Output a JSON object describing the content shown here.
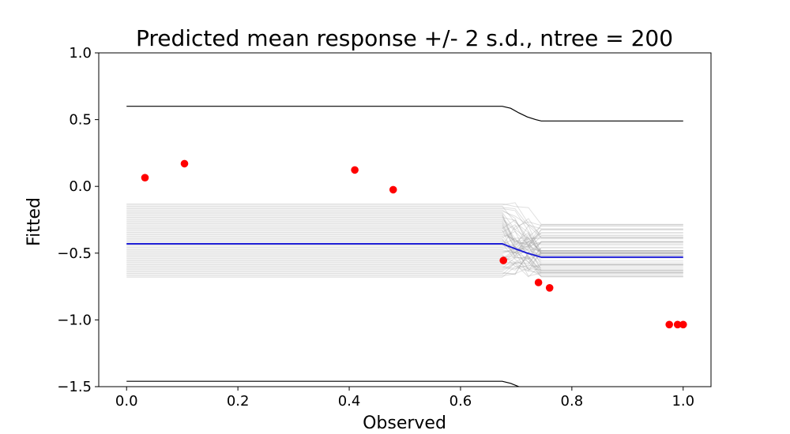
{
  "chart_data": {
    "type": "line",
    "title": "Predicted mean response +/- 2 s.d., ntree = 200",
    "xlabel": "Observed",
    "ylabel": "Fitted",
    "xlim": [
      -0.05,
      1.05
    ],
    "ylim": [
      -1.5,
      1.0
    ],
    "x_ticks": [
      0.0,
      0.2,
      0.4,
      0.6,
      0.8,
      1.0
    ],
    "x_tick_labels": [
      "0.0",
      "0.2",
      "0.4",
      "0.6",
      "0.8",
      "1.0"
    ],
    "y_ticks": [
      1.0,
      0.5,
      0.0,
      -0.5,
      -1.0,
      -1.5
    ],
    "y_tick_labels": [
      "1.0",
      "0.5",
      "0.0",
      "−0.5",
      "−1.0",
      "−1.5"
    ],
    "grid": false,
    "legend": "none",
    "colors": {
      "mean": "#1f1fd6",
      "bands": "#000000",
      "trees": "#999999",
      "points": "#ff0000"
    },
    "series": [
      {
        "role": "upper band",
        "x": [
          0.0,
          0.675,
          0.69,
          0.705,
          0.72,
          0.735,
          0.745,
          1.0
        ],
        "y": [
          0.6,
          0.6,
          0.585,
          0.55,
          0.52,
          0.5,
          0.49,
          0.49
        ]
      },
      {
        "role": "lower band",
        "x": [
          0.0,
          0.675,
          0.69,
          0.705,
          0.72
        ],
        "y": [
          -1.46,
          -1.46,
          -1.475,
          -1.5,
          -1.52
        ]
      },
      {
        "role": "mean",
        "x": [
          0.0,
          0.675,
          0.7,
          0.72,
          0.745,
          1.0
        ],
        "y": [
          -0.43,
          -0.43,
          -0.47,
          -0.5,
          -0.53,
          -0.53
        ]
      }
    ],
    "trees": {
      "count": 60,
      "x_break_start": 0.675,
      "x_break_end": 0.745,
      "left_range": [
        -0.68,
        -0.13
      ],
      "right_range": [
        -0.68,
        -0.28
      ]
    },
    "points": {
      "x": [
        0.033,
        0.104,
        0.41,
        0.479,
        0.677,
        0.74,
        0.76,
        0.975,
        0.99,
        1.0
      ],
      "y": [
        0.065,
        0.17,
        0.123,
        -0.025,
        -0.555,
        -0.72,
        -0.76,
        -1.035,
        -1.035,
        -1.035
      ]
    }
  }
}
